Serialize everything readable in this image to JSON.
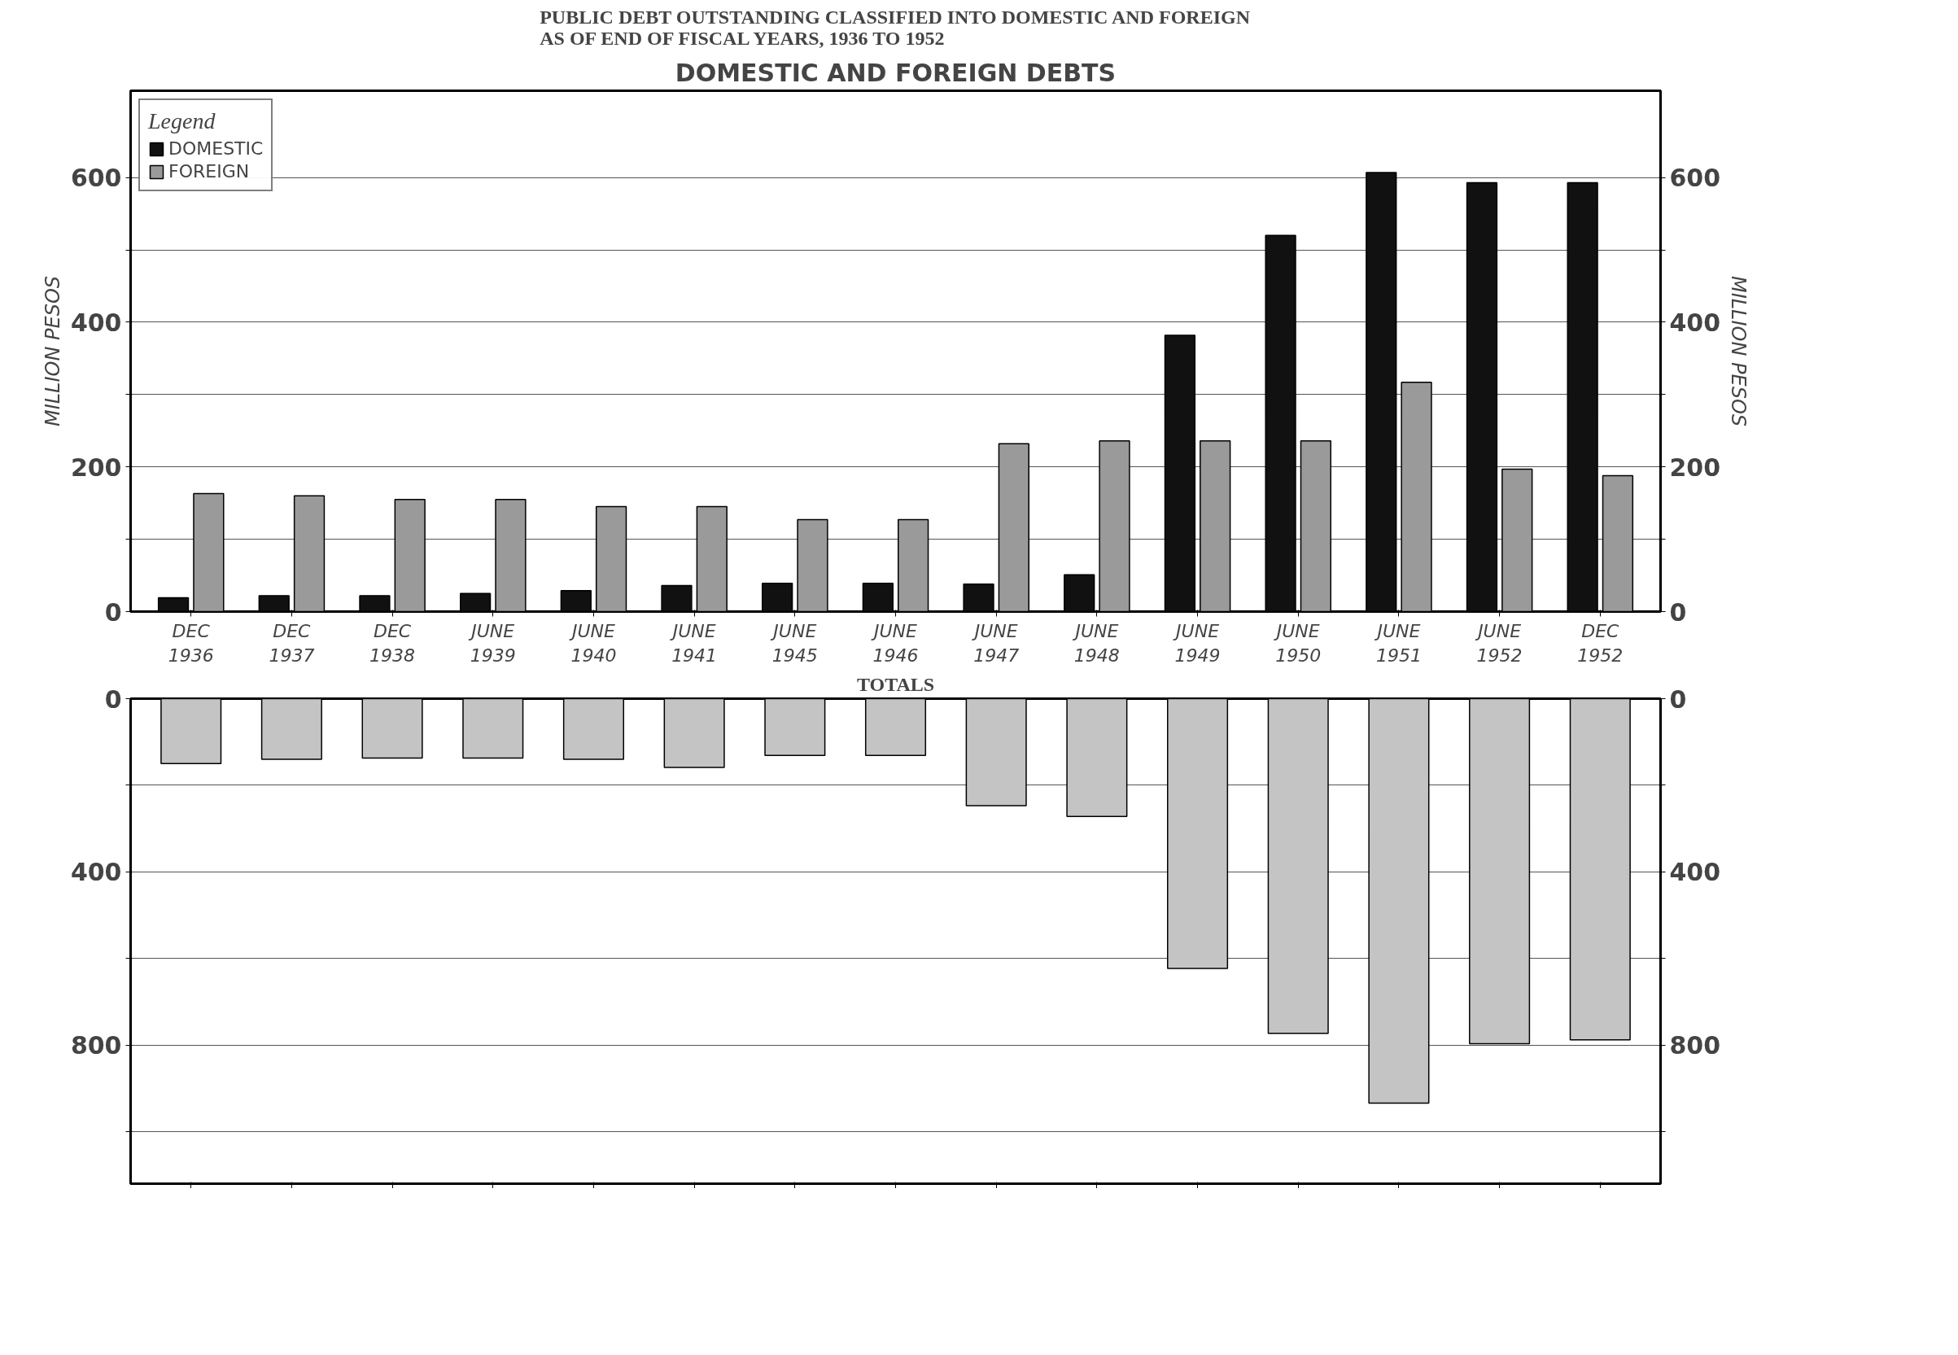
{
  "chart_data": [
    {
      "type": "bar",
      "title": "PUBLIC DEBT OUTSTANDING CLASSIFIED INTO DOMESTIC AND FOREIGN\nAS OF END OF FISCAL YEARS, 1936 TO 1952",
      "subtitle": "DOMESTIC AND FOREIGN DEBTS",
      "ylabel": "MILLION PESOS",
      "y2label": "MILLION PESOS",
      "legend_title": "Legend",
      "legend": "top left",
      "grid": "y",
      "categories": [
        "DEC\n1936",
        "DEC\n1937",
        "DEC\n1938",
        "JUNE\n1939",
        "JUNE\n1940",
        "JUNE\n1941",
        "JUNE\n1945",
        "JUNE\n1946",
        "JUNE\n1947",
        "JUNE\n1948",
        "JUNE\n1949",
        "JUNE\n1950",
        "JUNE\n1951",
        "JUNE\n1952",
        "DEC\n1952"
      ],
      "series": [
        {
          "name": "DOMESTIC",
          "color": "#111111",
          "values": [
            19,
            22,
            22,
            25,
            29,
            36,
            39,
            39,
            38,
            51,
            382,
            520,
            607,
            593,
            593
          ]
        },
        {
          "name": "FOREIGN",
          "color": "#9a9a9a",
          "values": [
            163,
            160,
            155,
            155,
            145,
            145,
            127,
            127,
            232,
            236,
            236,
            236,
            317,
            197,
            188
          ]
        }
      ],
      "ylim": [
        0,
        720
      ],
      "yticks": [
        0,
        {
          "value": 100,
          "label": null
        },
        200,
        {
          "value": 300,
          "label": null
        },
        400,
        {
          "value": 500,
          "label": null
        },
        600
      ],
      "y2lim": [
        0,
        720
      ],
      "y2ticks": [
        0,
        {
          "value": 100,
          "label": null
        },
        200,
        {
          "value": 300,
          "label": null
        },
        400,
        {
          "value": 500,
          "label": null
        },
        600
      ]
    },
    {
      "type": "bar",
      "title": "TOTALS",
      "tick_labels": "y",
      "grid": "y",
      "categories": [
        null,
        null,
        null,
        null,
        null,
        null,
        null,
        null,
        null,
        null,
        null,
        null,
        null,
        null,
        null
      ],
      "series": [
        {
          "color": "#c4c4c4",
          "values": [
            150,
            140,
            137,
            137,
            140,
            159,
            131,
            131,
            247,
            272,
            623,
            773,
            934,
            797,
            788
          ]
        }
      ],
      "ylim": [
        1120,
        0
      ],
      "yticks": [
        0,
        {
          "value": 200,
          "label": null
        },
        400,
        {
          "value": 600,
          "label": null
        },
        800,
        {
          "value": 1000,
          "label": null
        }
      ],
      "y2lim": [
        1120,
        0
      ],
      "y2ticks": [
        0,
        {
          "value": 200,
          "label": null
        },
        400,
        {
          "value": 600,
          "label": null
        },
        800,
        {
          "value": 1000,
          "label": null
        }
      ]
    }
  ]
}
